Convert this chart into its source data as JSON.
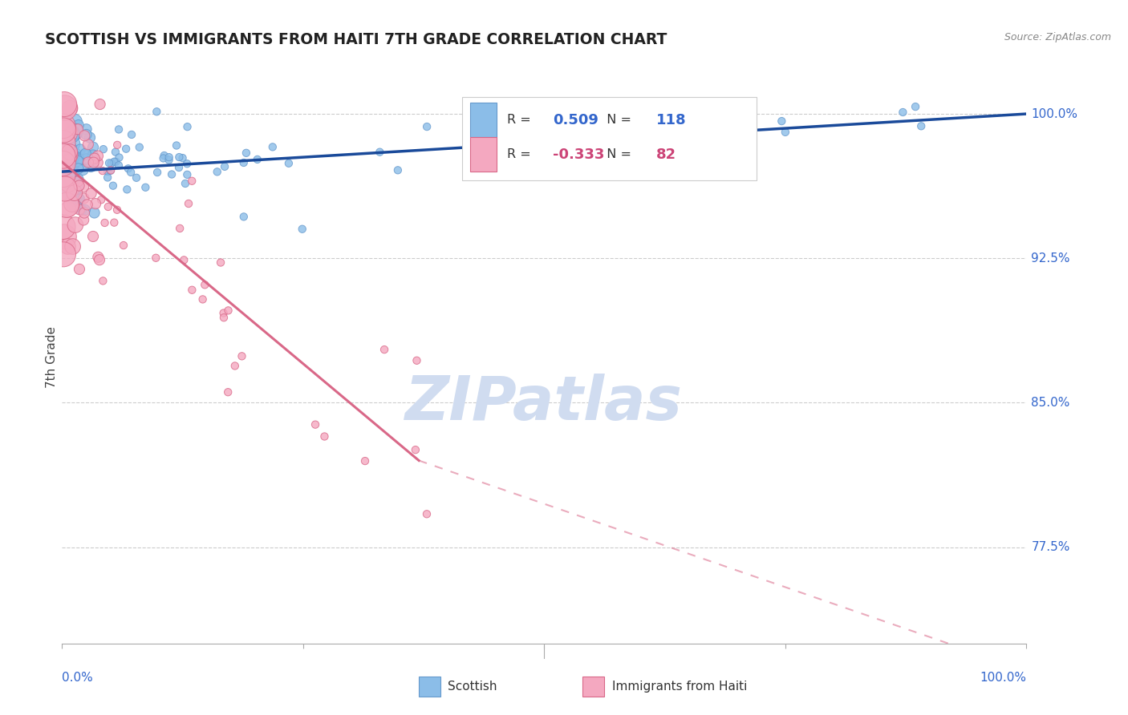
{
  "title": "SCOTTISH VS IMMIGRANTS FROM HAITI 7TH GRADE CORRELATION CHART",
  "source": "Source: ZipAtlas.com",
  "ylabel": "7th Grade",
  "xlim": [
    0.0,
    1.0
  ],
  "ylim": [
    0.725,
    1.022
  ],
  "yticks": [
    0.775,
    0.85,
    0.925,
    1.0
  ],
  "ytick_labels": [
    "77.5%",
    "85.0%",
    "92.5%",
    "100.0%"
  ],
  "grid_color": "#cccccc",
  "background_color": "#ffffff",
  "blue_color": "#8bbde8",
  "blue_edge": "#6699cc",
  "blue_trend_color": "#1a4a9a",
  "pink_color": "#f4a8c0",
  "pink_edge": "#d96888",
  "pink_trend_color": "#d96888",
  "watermark": "ZIPatlas",
  "watermark_color": "#d0dcf0",
  "title_color": "#222222",
  "axis_label_color": "#3366cc",
  "legend_blue_color": "#3366cc",
  "legend_pink_color": "#cc4477",
  "R_blue": "0.509",
  "N_blue": "118",
  "R_pink": "-0.333",
  "N_pink": "82",
  "series_blue": "Scottish",
  "series_pink": "Immigrants from Haiti"
}
